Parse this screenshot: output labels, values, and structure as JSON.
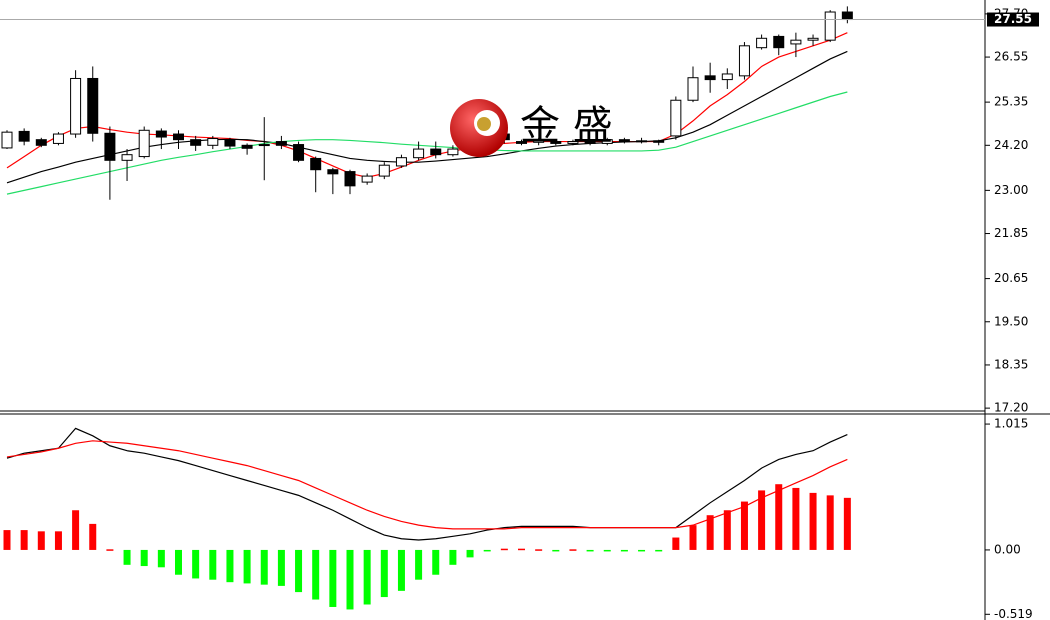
{
  "chart_data": [
    {
      "type": "candlestick",
      "open": [
        24.13,
        24.57,
        24.35,
        24.25,
        24.5,
        25.98,
        24.52,
        23.8,
        23.9,
        24.58,
        24.5,
        24.35,
        24.2,
        24.35,
        24.2,
        24.2,
        24.3,
        24.22,
        23.85,
        23.55,
        23.5,
        23.22,
        23.38,
        23.65,
        23.87,
        24.1,
        23.95,
        24.1,
        24.3,
        24.5,
        24.3,
        24.28,
        24.3,
        24.25,
        24.3,
        24.25,
        24.35,
        24.3,
        24.32,
        24.45,
        25.4,
        26.05,
        25.95,
        26.05,
        26.8,
        27.1,
        26.9,
        27.0,
        27.0,
        27.75
      ],
      "high": [
        24.6,
        24.65,
        24.4,
        24.55,
        26.2,
        26.3,
        24.7,
        24.1,
        24.7,
        24.65,
        24.6,
        24.45,
        24.45,
        24.4,
        24.25,
        24.95,
        24.45,
        24.3,
        23.9,
        23.6,
        23.55,
        23.45,
        23.75,
        23.95,
        24.3,
        24.3,
        24.2,
        24.4,
        24.65,
        24.6,
        24.35,
        24.4,
        24.35,
        24.35,
        24.35,
        24.4,
        24.4,
        24.4,
        24.35,
        25.5,
        26.3,
        26.4,
        26.25,
        26.95,
        27.15,
        27.15,
        27.2,
        27.15,
        27.8,
        27.9
      ],
      "low": [
        24.1,
        24.2,
        24.15,
        24.2,
        24.4,
        24.3,
        22.75,
        23.25,
        23.85,
        24.1,
        24.1,
        24.05,
        24.1,
        24.1,
        23.95,
        23.27,
        24.1,
        23.75,
        22.95,
        22.9,
        22.9,
        23.15,
        23.3,
        23.6,
        23.8,
        23.85,
        23.9,
        24.0,
        24.2,
        24.25,
        24.2,
        24.2,
        24.2,
        24.2,
        24.2,
        24.2,
        24.25,
        24.25,
        24.2,
        24.35,
        25.35,
        25.6,
        25.7,
        25.95,
        26.75,
        26.6,
        26.55,
        26.85,
        26.95,
        27.45
      ],
      "close": [
        24.55,
        24.31,
        24.2,
        24.5,
        25.98,
        24.52,
        23.8,
        23.95,
        24.6,
        24.42,
        24.35,
        24.2,
        24.38,
        24.18,
        24.12,
        24.22,
        24.2,
        23.8,
        23.55,
        23.44,
        23.12,
        23.38,
        23.67,
        23.87,
        24.1,
        23.95,
        24.1,
        24.3,
        24.5,
        24.35,
        24.25,
        24.32,
        24.25,
        24.3,
        24.25,
        24.35,
        24.3,
        24.32,
        24.28,
        25.4,
        26.0,
        25.95,
        26.1,
        26.85,
        27.05,
        26.8,
        27.0,
        27.05,
        27.75,
        27.55
      ],
      "up_color": "#ffffff",
      "down_color": "#000000",
      "series": [
        {
          "color": "#ff0000",
          "values": [
            23.6,
            23.9,
            24.2,
            24.45,
            24.65,
            24.7,
            24.62,
            24.55,
            24.5,
            24.48,
            24.45,
            24.42,
            24.4,
            24.38,
            24.33,
            24.3,
            24.2,
            24.05,
            23.85,
            23.65,
            23.45,
            23.35,
            23.45,
            23.62,
            23.8,
            23.95,
            24.05,
            24.12,
            24.2,
            24.25,
            24.28,
            24.3,
            24.3,
            24.3,
            24.3,
            24.3,
            24.3,
            24.3,
            24.3,
            24.5,
            24.85,
            25.25,
            25.55,
            25.9,
            26.3,
            26.55,
            26.7,
            26.85,
            27.0,
            27.2
          ]
        },
        {
          "color": "#000000",
          "values": [
            23.2,
            23.35,
            23.5,
            23.62,
            23.75,
            23.85,
            23.95,
            24.05,
            24.15,
            24.22,
            24.28,
            24.32,
            24.35,
            24.36,
            24.35,
            24.3,
            24.25,
            24.15,
            24.05,
            23.95,
            23.85,
            23.8,
            23.77,
            23.75,
            23.75,
            23.78,
            23.82,
            23.86,
            23.9,
            23.97,
            24.05,
            24.12,
            24.18,
            24.22,
            24.25,
            24.27,
            24.29,
            24.3,
            24.32,
            24.4,
            24.55,
            24.75,
            25.0,
            25.25,
            25.5,
            25.75,
            26.0,
            26.25,
            26.5,
            26.7
          ]
        },
        {
          "color": "#22dd66",
          "values": [
            22.9,
            23.0,
            23.1,
            23.2,
            23.3,
            23.4,
            23.5,
            23.6,
            23.7,
            23.8,
            23.88,
            23.95,
            24.03,
            24.1,
            24.17,
            24.25,
            24.3,
            24.33,
            24.35,
            24.35,
            24.33,
            24.3,
            24.27,
            24.23,
            24.2,
            24.17,
            24.14,
            24.1,
            24.08,
            24.06,
            24.05,
            24.05,
            24.05,
            24.05,
            24.05,
            24.05,
            24.05,
            24.05,
            24.07,
            24.15,
            24.3,
            24.45,
            24.6,
            24.75,
            24.9,
            25.05,
            25.2,
            25.35,
            25.5,
            25.62
          ]
        }
      ],
      "ylim": [
        17.15,
        28.07
      ],
      "yticks": [
        {
          "value": 17.2,
          "label": "17.20"
        },
        {
          "value": 18.35,
          "label": "18.35"
        },
        {
          "value": 19.5,
          "label": "19.50"
        },
        {
          "value": 20.65,
          "label": "20.65"
        },
        {
          "value": 21.85,
          "label": "21.85"
        },
        {
          "value": 23.0,
          "label": "23.00"
        },
        {
          "value": 24.2,
          "label": "24.20"
        },
        {
          "value": 25.35,
          "label": "25.35"
        },
        {
          "value": 26.55,
          "label": "26.55"
        },
        {
          "value": 27.7,
          "label": "27.70"
        }
      ],
      "last_price": {
        "value": 27.55,
        "label": "27.55"
      },
      "watermark": "金 盛"
    },
    {
      "type": "macd",
      "histogram": {
        "pos_color": "#ff0000",
        "neg_color": "#00ff00",
        "values": [
          0.16,
          0.16,
          0.15,
          0.15,
          0.32,
          0.21,
          0.005,
          -0.12,
          -0.13,
          -0.14,
          -0.2,
          -0.23,
          -0.24,
          -0.26,
          -0.27,
          -0.28,
          -0.29,
          -0.34,
          -0.4,
          -0.46,
          -0.48,
          -0.44,
          -0.38,
          -0.33,
          -0.24,
          -0.2,
          -0.12,
          -0.06,
          -0.01,
          0.01,
          0.01,
          0.005,
          -0.005,
          0.005,
          -0.005,
          -0.005,
          -0.005,
          -0.005,
          -0.005,
          0.1,
          0.2,
          0.28,
          0.32,
          0.39,
          0.48,
          0.53,
          0.5,
          0.46,
          0.44,
          0.42
        ]
      },
      "series": [
        {
          "color": "#000000",
          "values": [
            0.74,
            0.78,
            0.8,
            0.82,
            0.98,
            0.92,
            0.84,
            0.8,
            0.78,
            0.75,
            0.72,
            0.68,
            0.64,
            0.6,
            0.56,
            0.52,
            0.48,
            0.44,
            0.38,
            0.32,
            0.25,
            0.18,
            0.12,
            0.09,
            0.08,
            0.09,
            0.11,
            0.13,
            0.16,
            0.18,
            0.19,
            0.19,
            0.19,
            0.19,
            0.18,
            0.18,
            0.18,
            0.18,
            0.18,
            0.18,
            0.28,
            0.38,
            0.47,
            0.56,
            0.66,
            0.73,
            0.77,
            0.8,
            0.87,
            0.93
          ]
        },
        {
          "color": "#ff0000",
          "values": [
            0.75,
            0.77,
            0.79,
            0.82,
            0.86,
            0.88,
            0.87,
            0.86,
            0.84,
            0.82,
            0.8,
            0.77,
            0.74,
            0.71,
            0.68,
            0.64,
            0.6,
            0.56,
            0.5,
            0.44,
            0.38,
            0.32,
            0.27,
            0.23,
            0.2,
            0.18,
            0.17,
            0.17,
            0.17,
            0.17,
            0.18,
            0.18,
            0.18,
            0.18,
            0.18,
            0.18,
            0.18,
            0.18,
            0.18,
            0.18,
            0.2,
            0.25,
            0.3,
            0.35,
            0.42,
            0.48,
            0.54,
            0.6,
            0.67,
            0.73
          ]
        }
      ],
      "ylim": [
        -0.565,
        1.08
      ],
      "yticks": [
        1.015,
        {
          "value": 0,
          "label": "0.00"
        },
        -0.519
      ]
    }
  ]
}
